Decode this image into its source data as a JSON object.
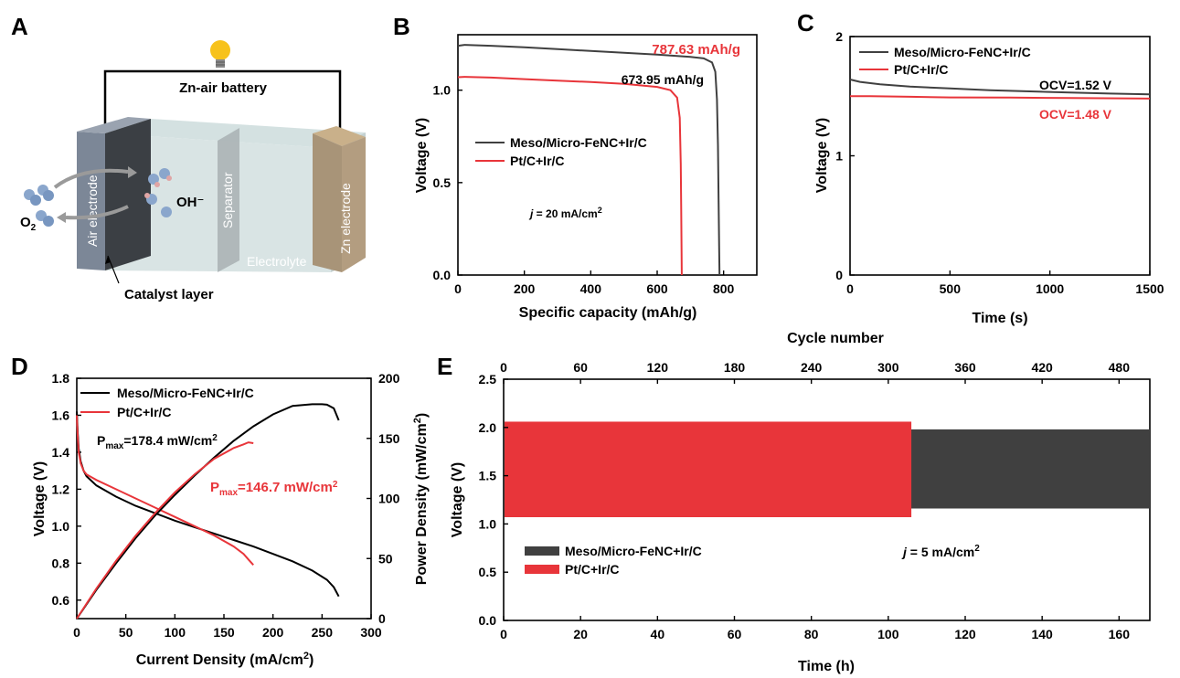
{
  "colors": {
    "meso": "#404040",
    "pt": "#e8353a",
    "black_curve": "#000000"
  },
  "panels": {
    "A": {
      "label": "A",
      "battery_label": "Zn-air battery",
      "air_electrode": "Air electrode",
      "separator": "Separator",
      "zn_electrode": "Zn electrode",
      "electrolyte": "Electrolyte",
      "catalyst_layer": "Catalyst layer",
      "oh": "OH⁻",
      "o2_main": "O",
      "o2_sub": "2",
      "bulb_icon": "lightbulb-icon"
    },
    "B": {
      "label": "B"
    },
    "C": {
      "label": "C"
    },
    "D": {
      "label": "D"
    },
    "E": {
      "label": "E"
    }
  },
  "chart_data": [
    {
      "id": "B",
      "type": "line",
      "xlabel": "Specific capacity (mAh/g)",
      "ylabel": "Voltage (V)",
      "xlim": [
        0,
        900
      ],
      "ylim": [
        0,
        1.3
      ],
      "xticks": [
        "0",
        "200",
        "400",
        "600",
        "800"
      ],
      "yticks": [
        "0.0",
        "0.5",
        "1.0"
      ],
      "legend": [
        "Meso/Micro-FeNC+Ir/C",
        "Pt/C+Ir/C"
      ],
      "annotations": {
        "meso_capacity": "787.63 mAh/g",
        "pt_capacity": "673.95 mAh/g",
        "current_italic": "j",
        "current_rest": " = 20 mA/cm",
        "current_sup": "2"
      },
      "series": [
        {
          "name": "Meso/Micro-FeNC+Ir/C",
          "x": [
            0,
            20,
            100,
            200,
            300,
            400,
            500,
            600,
            700,
            740,
            765,
            775,
            780,
            783,
            785,
            786.5,
            787.63
          ],
          "y": [
            1.24,
            1.245,
            1.24,
            1.232,
            1.222,
            1.212,
            1.202,
            1.192,
            1.18,
            1.172,
            1.15,
            1.1,
            0.95,
            0.7,
            0.4,
            0.15,
            0
          ]
        },
        {
          "name": "Pt/C+Ir/C",
          "x": [
            0,
            20,
            100,
            200,
            300,
            400,
            500,
            600,
            640,
            660,
            668,
            671,
            672.5,
            673.5,
            673.95
          ],
          "y": [
            1.07,
            1.072,
            1.068,
            1.06,
            1.052,
            1.044,
            1.034,
            1.018,
            1.0,
            0.96,
            0.85,
            0.6,
            0.35,
            0.12,
            0
          ]
        }
      ]
    },
    {
      "id": "C",
      "type": "line",
      "xlabel": "Time (s)",
      "ylabel": "Voltage (V)",
      "xlim": [
        0,
        1500
      ],
      "ylim": [
        0,
        2
      ],
      "xticks": [
        "0",
        "500",
        "1000",
        "1500"
      ],
      "yticks": [
        "0",
        "1",
        "2"
      ],
      "legend": [
        "Meso/Micro-FeNC+Ir/C",
        "Pt/C+Ir/C"
      ],
      "annotations": {
        "meso_ocv": "OCV=1.52 V",
        "pt_ocv": "OCV=1.48 V"
      },
      "series": [
        {
          "name": "Meso/Micro-FeNC+Ir/C",
          "x": [
            0,
            50,
            150,
            300,
            500,
            700,
            900,
            1100,
            1300,
            1500
          ],
          "y": [
            1.64,
            1.62,
            1.6,
            1.58,
            1.565,
            1.55,
            1.54,
            1.53,
            1.522,
            1.515
          ]
        },
        {
          "name": "Pt/C+Ir/C",
          "x": [
            0,
            100,
            300,
            500,
            800,
            1100,
            1500
          ],
          "y": [
            1.5,
            1.5,
            1.495,
            1.49,
            1.488,
            1.484,
            1.48
          ]
        }
      ]
    },
    {
      "id": "D",
      "type": "line",
      "xlabel_main": "Current Density (mA/cm",
      "xlabel_sup": "2",
      "xlabel_end": ")",
      "ylabel": "Voltage (V)",
      "y2label_main": "Power Density (mW/cm",
      "y2label_sup": "2",
      "y2label_end": ")",
      "xlim": [
        0,
        300
      ],
      "ylim": [
        0.5,
        1.8
      ],
      "y2lim": [
        0,
        200
      ],
      "xticks": [
        "0",
        "50",
        "100",
        "150",
        "200",
        "250",
        "300"
      ],
      "yticks": [
        "0.6",
        "0.8",
        "1.0",
        "1.2",
        "1.4",
        "1.6",
        "1.8"
      ],
      "y2ticks": [
        "0",
        "50",
        "100",
        "150",
        "200"
      ],
      "legend": [
        "Meso/Micro-FeNC+Ir/C",
        "Pt/C+Ir/C"
      ],
      "annotations": {
        "meso_pmax_p": "P",
        "meso_pmax_sub": "max",
        "meso_pmax_val": "=178.4 mW/cm",
        "meso_pmax_sup": "2",
        "pt_pmax_p": "P",
        "pt_pmax_sub": "max",
        "pt_pmax_val": "=146.7 mW/cm",
        "pt_pmax_sup": "2"
      },
      "series": [
        {
          "name": "Meso/Micro-FeNC+Ir/C voltage",
          "axis": "left",
          "x": [
            0,
            1,
            2,
            4,
            7,
            10,
            20,
            40,
            60,
            80,
            100,
            120,
            140,
            160,
            180,
            200,
            220,
            240,
            255,
            262,
            267
          ],
          "y": [
            1.62,
            1.5,
            1.42,
            1.35,
            1.3,
            1.27,
            1.22,
            1.16,
            1.11,
            1.07,
            1.03,
            0.995,
            0.96,
            0.925,
            0.89,
            0.85,
            0.81,
            0.76,
            0.71,
            0.67,
            0.62
          ]
        },
        {
          "name": "Pt/C+Ir/C voltage",
          "axis": "left",
          "x": [
            0,
            1,
            2,
            4,
            7,
            10,
            20,
            40,
            60,
            80,
            100,
            120,
            140,
            160,
            170,
            175,
            180
          ],
          "y": [
            1.6,
            1.48,
            1.4,
            1.34,
            1.3,
            1.28,
            1.25,
            1.2,
            1.15,
            1.1,
            1.05,
            1.0,
            0.95,
            0.89,
            0.85,
            0.82,
            0.79
          ]
        },
        {
          "name": "Meso/Micro-FeNC+Ir/C power",
          "axis": "right",
          "x": [
            0,
            20,
            40,
            60,
            80,
            100,
            120,
            140,
            160,
            180,
            200,
            220,
            240,
            250,
            255,
            262,
            267
          ],
          "y": [
            0,
            24,
            46,
            67,
            86,
            103,
            119,
            134,
            148,
            160,
            170,
            177,
            178.4,
            178.4,
            178,
            175,
            165
          ]
        },
        {
          "name": "Pt/C+Ir/C power",
          "axis": "right",
          "x": [
            0,
            20,
            40,
            60,
            80,
            100,
            120,
            140,
            160,
            170,
            175,
            180
          ],
          "y": [
            0,
            25,
            48,
            69,
            88,
            105,
            120,
            133,
            142,
            145,
            146.7,
            146
          ]
        }
      ]
    },
    {
      "id": "E",
      "type": "area",
      "xlabel": "Time (h)",
      "ylabel": "Voltage (V)",
      "x2label": "Cycle number",
      "xlim": [
        0,
        168
      ],
      "ylim": [
        0,
        2.5
      ],
      "x2lim": [
        0,
        504
      ],
      "xticks": [
        "0",
        "20",
        "40",
        "60",
        "80",
        "100",
        "120",
        "140",
        "160"
      ],
      "yticks": [
        "0.0",
        "0.5",
        "1.0",
        "1.5",
        "2.0",
        "2.5"
      ],
      "x2ticks": [
        "0",
        "60",
        "120",
        "180",
        "240",
        "300",
        "360",
        "420",
        "480"
      ],
      "legend": [
        "Meso/Micro-FeNC+Ir/C",
        "Pt/C+Ir/C"
      ],
      "annotations": {
        "current_italic": "j",
        "current_rest": " = 5 mA/cm",
        "current_sup": "2"
      },
      "series": [
        {
          "name": "Meso/Micro-FeNC+Ir/C",
          "x_range": [
            0,
            168
          ],
          "upper": 1.98,
          "lower": 1.16
        },
        {
          "name": "Pt/C+Ir/C",
          "x_range": [
            0,
            106
          ],
          "upper": 2.06,
          "lower": 1.07
        }
      ]
    }
  ]
}
